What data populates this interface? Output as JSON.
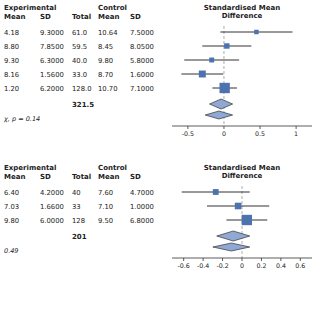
{
  "chart_data": [
    {
      "type": "forest",
      "title": "Standardised Mean\nDifference",
      "xlim": [
        -0.72,
        1.22
      ],
      "xticks": [
        -0.5,
        0,
        0.5,
        1
      ],
      "studies": {
        "values": [
          0.45,
          0.04,
          -0.17,
          -0.3,
          0.01
        ],
        "ci_low": [
          -0.05,
          -0.3,
          -0.55,
          -0.59,
          -0.16
        ],
        "ci_high": [
          0.95,
          0.38,
          0.21,
          -0.01,
          0.18
        ],
        "weight": [
          0.04,
          0.06,
          0.05,
          0.1,
          0.22
        ]
      },
      "summary": {
        "values": [
          -0.04,
          -0.07
        ],
        "ci_low": [
          -0.2,
          -0.26
        ],
        "ci_high": [
          0.12,
          0.12
        ]
      },
      "table": {
        "col_headers": [
          "Experimental",
          "Control"
        ],
        "col_headers2": [
          "Mean",
          "SD",
          "Total",
          "Mean",
          "SD"
        ],
        "rows": [
          [
            "4.18",
            "9.3000",
            "61.0",
            "10.64",
            "7.5000"
          ],
          [
            "8.80",
            "7.8500",
            "59.5",
            "8.45",
            "8.0500"
          ],
          [
            "9.30",
            "6.3000",
            "40.0",
            "9.80",
            "5.8000"
          ],
          [
            "8.16",
            "1.5600",
            "33.0",
            "8.70",
            "1.6000"
          ],
          [
            "1.20",
            "6.2000",
            "128.0",
            "10.70",
            "7.1000"
          ]
        ],
        "total": "321.5",
        "pvalue": "χ, p = 0.14"
      }
    },
    {
      "type": "forest",
      "title": "Standardised Mean\nDifference",
      "xlim": [
        -0.72,
        0.72
      ],
      "xticks": [
        -0.6,
        -0.4,
        -0.2,
        0,
        0.2,
        0.4,
        0.6
      ],
      "studies": {
        "values": [
          -0.27,
          -0.04,
          0.05
        ],
        "ci_low": [
          -0.62,
          -0.36,
          -0.16
        ],
        "ci_high": [
          0.08,
          0.28,
          0.26
        ],
        "weight": [
          0.07,
          0.09,
          0.22
        ]
      },
      "summary": {
        "values": [
          -0.09,
          -0.11
        ],
        "ci_low": [
          -0.26,
          -0.3
        ],
        "ci_high": [
          0.08,
          0.08
        ]
      },
      "table": {
        "col_headers": [
          "Experimental",
          "Control"
        ],
        "col_headers2": [
          "Mean",
          "SD",
          "Total",
          "Mean",
          "SD"
        ],
        "rows": [
          [
            "6.40",
            "4.2000",
            "40",
            "7.60",
            "4.7000"
          ],
          [
            "7.03",
            "1.6600",
            "33",
            "7.10",
            "1.0000"
          ],
          [
            "9.80",
            "6.0000",
            "128",
            "9.50",
            "6.8000"
          ]
        ],
        "total": "201",
        "pvalue": "0.49"
      }
    }
  ]
}
